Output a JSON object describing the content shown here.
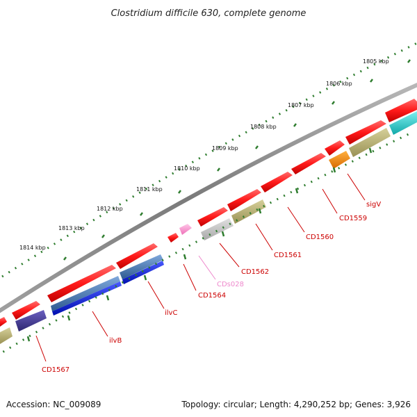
{
  "title": "Clostridium difficile 630, complete genome",
  "footer": {
    "accession": "Accession: NC_009089",
    "summary": "Topology: circular; Length: 4,290,252 bp; Genes: 3,926"
  },
  "colors": {
    "backbone": "#8a8a8a",
    "tick": "#2f7d2f",
    "label_red": "#cc0000",
    "label_pink": "#ee88cc"
  },
  "ruler": {
    "labels": [
      "1805 kbp",
      "1806 kbp",
      "1807 kbp",
      "1808 kbp",
      "1809 kbp",
      "1810 kbp",
      "1811 kbp",
      "1812 kbp",
      "1813 kbp",
      "1814 kbp"
    ]
  },
  "features": [
    {
      "name": "CD1559",
      "color": "#ff2a2a",
      "icon": "arrow-red"
    },
    {
      "name": "sigV",
      "color": "#ff8c00",
      "icon": "arrow-orange"
    },
    {
      "name": "CD1560",
      "color": "#ff2a2a",
      "icon": "arrow-red"
    },
    {
      "name": "CD1561",
      "color": "#ff2a2a",
      "icon": "arrow-red"
    },
    {
      "name": "CD1562",
      "color": "#ff2a2a",
      "icon": "arrow-red"
    },
    {
      "name": "CDs028",
      "color": "#ff99cc",
      "icon": "arrow-pink"
    },
    {
      "name": "CD1564",
      "color": "#ff2a2a",
      "icon": "arrow-red"
    },
    {
      "name": "ilvC",
      "color": "#4a7fbf",
      "icon": "arrow-steelblue"
    },
    {
      "name": "ilvB",
      "color": "#2233dd",
      "icon": "arrow-blue"
    },
    {
      "name": "CD1567",
      "color": "#ff2a2a",
      "icon": "arrow-red"
    }
  ],
  "cog_colors": [
    "#b8b070",
    "#c8c8c8",
    "#20c8c8",
    "#4a3fa0",
    "#ff8c00",
    "#2233dd",
    "#4a7fbf"
  ]
}
